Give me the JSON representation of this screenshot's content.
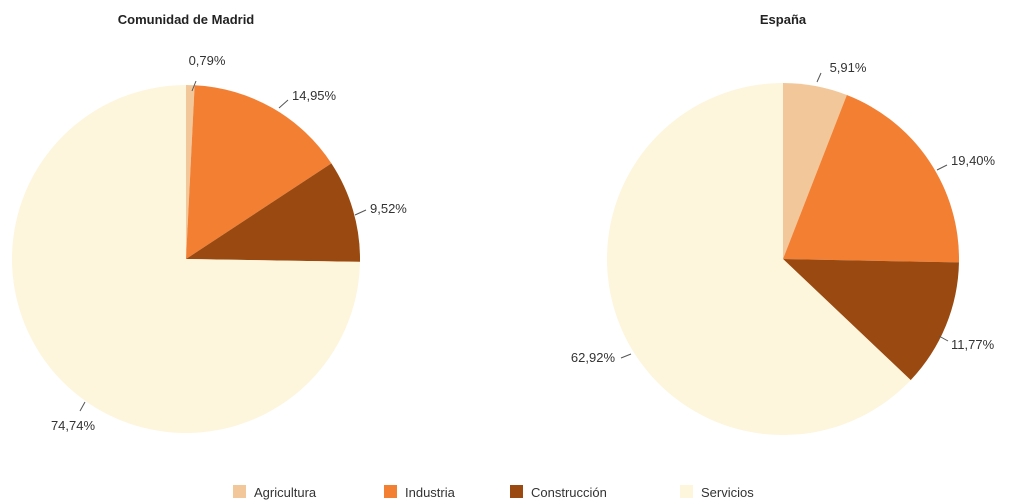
{
  "colors": {
    "Agricultura": "#f2c89a",
    "Industria": "#f37f33",
    "Construcción": "#9a4a10",
    "Servicios": "#fdf5dc"
  },
  "legend": {
    "position": "bottom",
    "items": [
      "Agricultura",
      "Industria",
      "Construcción",
      "Servicios"
    ]
  },
  "chart_data": [
    {
      "type": "pie",
      "title": "Comunidad de Madrid",
      "slices": [
        {
          "label": "Agricultura",
          "value": 0.79,
          "text": "0,79%"
        },
        {
          "label": "Industria",
          "value": 14.95,
          "text": "14,95%"
        },
        {
          "label": "Construcción",
          "value": 9.52,
          "text": "9,52%"
        },
        {
          "label": "Servicios",
          "value": 74.74,
          "text": "74,74%"
        }
      ]
    },
    {
      "type": "pie",
      "title": "España",
      "slices": [
        {
          "label": "Agricultura",
          "value": 5.91,
          "text": "5,91%"
        },
        {
          "label": "Industria",
          "value": 19.4,
          "text": "19,40%"
        },
        {
          "label": "Construcción",
          "value": 11.77,
          "text": "11,77%"
        },
        {
          "label": "Servicios",
          "value": 62.92,
          "text": "62,92%"
        }
      ]
    }
  ]
}
